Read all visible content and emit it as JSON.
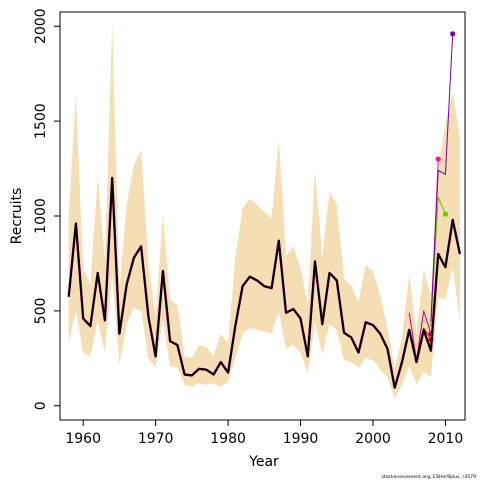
{
  "chart_data": {
    "type": "line",
    "xlabel": "Year",
    "ylabel": "Recruits",
    "xlim": [
      1956.8,
      2012.7
    ],
    "ylim": [
      -75,
      2075
    ],
    "x_ticks": [
      1960,
      1970,
      1980,
      1990,
      2000,
      2010
    ],
    "y_ticks": [
      0,
      500,
      1000,
      1500,
      2000
    ],
    "grid": false,
    "legend": "none",
    "credit": "stockassessment.org, CSHer9plus, r3579",
    "colors": {
      "band": "#f5deb3",
      "main": "#000000",
      "retro1": "#ff0000",
      "retro2": "#b5008a",
      "retro3": "#ff1493",
      "retro4": "#66cc00",
      "retro5": "#7a00aa"
    },
    "band": {
      "x": [
        1958,
        1959,
        1960,
        1961,
        1962,
        1963,
        1964,
        1965,
        1966,
        1967,
        1968,
        1969,
        1970,
        1971,
        1972,
        1973,
        1974,
        1975,
        1976,
        1977,
        1978,
        1979,
        1980,
        1981,
        1982,
        1983,
        1984,
        1985,
        1986,
        1987,
        1988,
        1989,
        1990,
        1991,
        1992,
        1993,
        1994,
        1995,
        1996,
        1997,
        1998,
        1999,
        2000,
        2001,
        2002,
        2003,
        2004,
        2005,
        2006,
        2007,
        2008,
        2009,
        2010,
        2011,
        2012
      ],
      "lower": [
        330,
        500,
        280,
        260,
        450,
        280,
        700,
        220,
        430,
        520,
        500,
        250,
        200,
        450,
        210,
        200,
        110,
        100,
        120,
        110,
        120,
        100,
        130,
        250,
        380,
        410,
        400,
        390,
        380,
        500,
        300,
        320,
        280,
        170,
        440,
        270,
        430,
        400,
        240,
        230,
        200,
        250,
        240,
        190,
        150,
        40,
        110,
        210,
        110,
        180,
        150,
        570,
        560,
        730,
        450
      ],
      "upper": [
        1000,
        1640,
        720,
        640,
        1210,
        760,
        2020,
        620,
        1060,
        1270,
        1350,
        750,
        470,
        1010,
        560,
        530,
        260,
        250,
        320,
        310,
        260,
        380,
        330,
        780,
        1040,
        1090,
        1060,
        1020,
        990,
        1400,
        790,
        840,
        730,
        530,
        1240,
        780,
        1130,
        1060,
        670,
        630,
        550,
        740,
        710,
        580,
        410,
        200,
        360,
        690,
        380,
        720,
        580,
        1260,
        1480,
        1650,
        1420
      ]
    },
    "series": [
      {
        "x": [
          1958,
          1959,
          1960,
          1961,
          1962,
          1963,
          1964,
          1965,
          1966,
          1967,
          1968,
          1969,
          1970,
          1971,
          1972,
          1973,
          1974,
          1975,
          1976,
          1977,
          1978,
          1979,
          1980,
          1981,
          1982,
          1983,
          1984,
          1985,
          1986,
          1987,
          1988,
          1989,
          1990,
          1991,
          1992,
          1993,
          1994,
          1995,
          1996,
          1997,
          1998,
          1999,
          2000,
          2001,
          2002,
          2003,
          2004,
          2005,
          2006,
          2007,
          2008,
          2009,
          2010,
          2011,
          2012
        ],
        "values": [
          575,
          960,
          460,
          420,
          700,
          450,
          1200,
          380,
          640,
          780,
          840,
          470,
          260,
          710,
          340,
          320,
          165,
          160,
          195,
          190,
          165,
          230,
          175,
          420,
          630,
          680,
          660,
          630,
          620,
          870,
          490,
          510,
          460,
          260,
          760,
          430,
          700,
          660,
          385,
          360,
          280,
          440,
          425,
          380,
          300,
          95,
          230,
          400,
          230,
          400,
          290,
          800,
          730,
          980,
          800
        ]
      },
      {
        "x": [
          2006,
          2007,
          2008
        ],
        "values": [
          230,
          410,
          350
        ]
      },
      {
        "x": [
          2005,
          2006,
          2007,
          2008
        ],
        "values": [
          490,
          240,
          500,
          380
        ]
      },
      {
        "x": [
          2008,
          2009
        ],
        "values": [
          420,
          1300
        ]
      },
      {
        "x": [
          2008,
          2009,
          2010
        ],
        "values": [
          430,
          1100,
          1010
        ]
      },
      {
        "x": [
          2008,
          2009,
          2010,
          2011
        ],
        "values": [
          440,
          1240,
          1220,
          1960
        ]
      }
    ]
  }
}
